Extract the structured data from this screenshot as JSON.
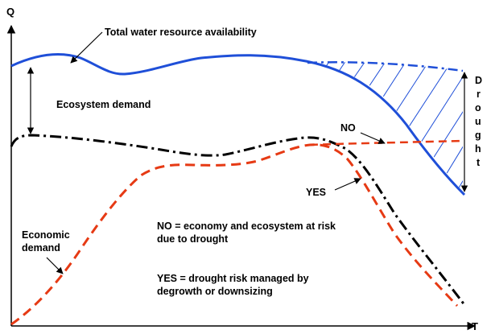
{
  "axes": {
    "y_label": "Q",
    "x_label": "T"
  },
  "labels": {
    "total_water": "Total water resource availability",
    "ecosystem_demand": "Ecosystem demand",
    "economic_demand_line1": "Economic",
    "economic_demand_line2": "demand",
    "no_marker": "NO",
    "yes_marker": "YES",
    "drought_letters": [
      "D",
      "r",
      "o",
      "u",
      "g",
      "h",
      "t"
    ],
    "note_no_line1": "NO = economy and ecosystem at risk",
    "note_no_line2": "due to drought",
    "note_yes_line1": "YES = drought risk managed by",
    "note_yes_line2": "degrowth or downsizing"
  },
  "colors": {
    "water": "#1f4fd8",
    "ecosystem": "#000000",
    "economic": "#e63a14",
    "axis": "#000000"
  }
}
